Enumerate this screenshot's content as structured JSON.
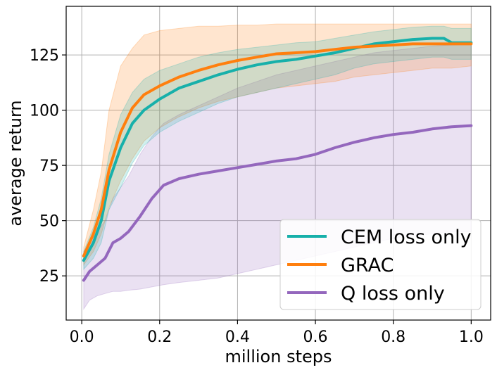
{
  "chart_data": {
    "type": "line",
    "title": "",
    "xlabel": "million steps",
    "ylabel": "average return",
    "xlim": [
      -0.04,
      1.05
    ],
    "ylim": [
      5,
      147
    ],
    "xticks": [
      0.0,
      0.2,
      0.4,
      0.6,
      0.8,
      1.0
    ],
    "xtick_labels": [
      "0.0",
      "0.2",
      "0.4",
      "0.6",
      "0.8",
      "1.0"
    ],
    "yticks": [
      25,
      50,
      75,
      100,
      125
    ],
    "ytick_labels": [
      "25",
      "50",
      "75",
      "100",
      "125"
    ],
    "grid": true,
    "legend_position": "lower-right",
    "series": [
      {
        "name": "CEM loss only",
        "color": "#17b0aa",
        "x": [
          0.005,
          0.03,
          0.05,
          0.07,
          0.1,
          0.13,
          0.16,
          0.2,
          0.25,
          0.3,
          0.35,
          0.4,
          0.45,
          0.5,
          0.55,
          0.6,
          0.65,
          0.7,
          0.75,
          0.8,
          0.85,
          0.9,
          0.93,
          0.95,
          1.0
        ],
        "values": [
          32,
          40,
          50,
          68,
          83,
          94,
          100,
          105,
          110,
          113,
          116,
          118.5,
          120.5,
          122,
          123,
          124.5,
          126,
          128,
          130,
          131,
          132,
          132.5,
          132.5,
          130.5,
          130.5
        ],
        "lower": [
          28,
          33,
          40,
          55,
          65,
          76,
          84,
          90,
          95,
          99,
          103,
          106,
          108,
          110,
          112,
          114,
          116,
          119,
          121,
          122,
          123,
          124,
          124,
          123,
          123
        ],
        "upper": [
          36,
          47,
          60,
          80,
          98,
          108,
          114,
          118,
          121,
          124,
          126,
          127.5,
          128.5,
          129.5,
          130.5,
          131,
          132.5,
          134,
          135.5,
          136.5,
          137.5,
          138,
          138,
          137,
          137
        ]
      },
      {
        "name": "GRAC",
        "color": "#ff7f0e",
        "x": [
          0.005,
          0.03,
          0.05,
          0.07,
          0.1,
          0.13,
          0.16,
          0.2,
          0.25,
          0.3,
          0.35,
          0.4,
          0.45,
          0.5,
          0.55,
          0.6,
          0.65,
          0.7,
          0.75,
          0.8,
          0.85,
          0.9,
          0.95,
          1.0
        ],
        "values": [
          34,
          44,
          55,
          73,
          90,
          101,
          107,
          111,
          115,
          118,
          120.5,
          122.5,
          124,
          125.5,
          126,
          126.5,
          127.5,
          128.5,
          129,
          129.5,
          130,
          130,
          130,
          130
        ],
        "lower": [
          30,
          36,
          44,
          56,
          68,
          78,
          86,
          92,
          97,
          101,
          104,
          106,
          108,
          110,
          111,
          112,
          113,
          115,
          116,
          117,
          118,
          119,
          119,
          120
        ],
        "upper": [
          38,
          55,
          72,
          100,
          120,
          128,
          134,
          136,
          137,
          138,
          138,
          138.5,
          138.5,
          139,
          139,
          139,
          139,
          139,
          139,
          139,
          139,
          139,
          139,
          139
        ]
      },
      {
        "name": "Q loss only",
        "color": "#9467bd",
        "x": [
          0.005,
          0.02,
          0.04,
          0.06,
          0.08,
          0.1,
          0.12,
          0.15,
          0.18,
          0.21,
          0.25,
          0.3,
          0.35,
          0.4,
          0.45,
          0.5,
          0.55,
          0.6,
          0.65,
          0.7,
          0.75,
          0.8,
          0.85,
          0.9,
          0.95,
          1.0
        ],
        "values": [
          23,
          27,
          30,
          33,
          40,
          42,
          45,
          52,
          60,
          66,
          69,
          71,
          72.5,
          74,
          75.5,
          77,
          78,
          80,
          83,
          85.5,
          87.5,
          89,
          90,
          91.5,
          92.5,
          93
        ],
        "lower": [
          10,
          14,
          16,
          17,
          18,
          18,
          18.5,
          19,
          20,
          21,
          22,
          23,
          24,
          26,
          28,
          30,
          32,
          34,
          36,
          38,
          40,
          42,
          43,
          44,
          45,
          45
        ],
        "upper": [
          36,
          40,
          45,
          50,
          60,
          65,
          70,
          80,
          88,
          94,
          98,
          102,
          106,
          110,
          113,
          116,
          118,
          120,
          122,
          124,
          126,
          127,
          128,
          129,
          129.5,
          130
        ]
      }
    ]
  }
}
